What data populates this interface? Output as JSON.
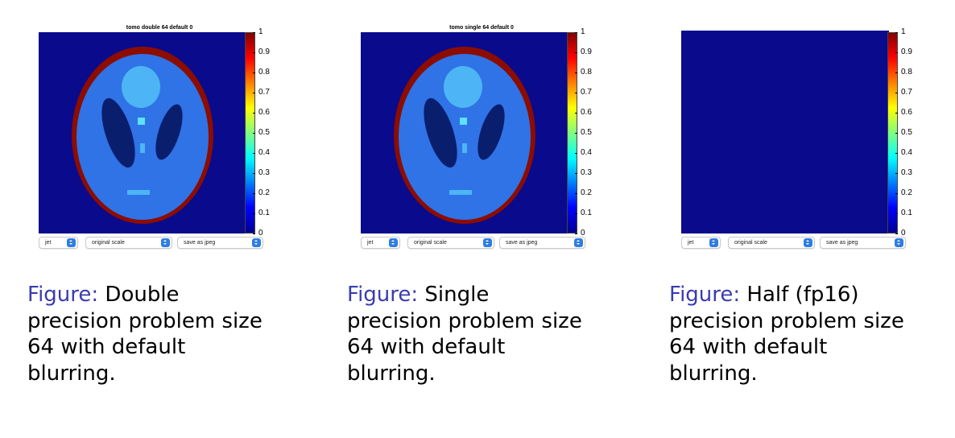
{
  "colorbar_ticks": [
    "0",
    "0.1",
    "0.2",
    "0.3",
    "0.4",
    "0.5",
    "0.6",
    "0.7",
    "0.8",
    "0.9",
    "1"
  ],
  "colors": {
    "background": "#0a0a8c",
    "ellipse_outer": "#8c0c00",
    "ellipse_fill": "#2f73e6",
    "dark_region": "#0a1e6e",
    "light_region": "#4db5f5",
    "accent": "#2f7de1",
    "caption_label": "#3b3bb0"
  },
  "panels": [
    {
      "title": "tomo double 64 default 0",
      "shows_phantom": true,
      "colormap_select": "jet",
      "scale_select": "original scale",
      "save_select": "save as jpeg",
      "caption_label": "Figure:",
      "caption_lines": [
        "Double",
        "precision problem size",
        "64 with default",
        "blurring."
      ]
    },
    {
      "title": "tomo single 64 default 0",
      "shows_phantom": true,
      "colormap_select": "jet",
      "scale_select": "original scale",
      "save_select": "save as jpeg",
      "caption_label": "Figure:",
      "caption_lines": [
        "Single",
        "precision problem size",
        "64 with default",
        "blurring."
      ]
    },
    {
      "title": "",
      "shows_phantom": false,
      "colormap_select": "jet",
      "scale_select": "original scale",
      "save_select": "save as jpeg",
      "caption_label": "Figure:",
      "caption_lines": [
        "Half (fp16)",
        "precision problem size",
        "64 with default",
        "blurring."
      ]
    }
  ]
}
